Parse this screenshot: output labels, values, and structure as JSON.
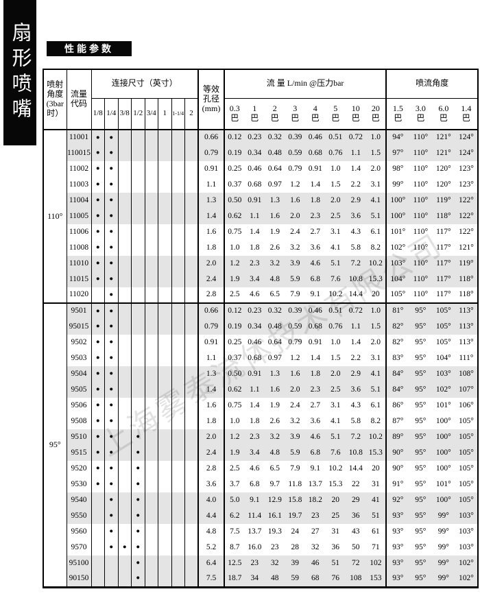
{
  "sidebar": {
    "title": "扇形喷嘴"
  },
  "section_label": "性能参数",
  "watermark": "上海雾泰流体技术有限公司",
  "colors": {
    "row_shade": "#e4e4e4",
    "banner_bg": "#070707",
    "banner_text": "#ffffff"
  },
  "table": {
    "header": {
      "spray_angle": "喷射\n角度\n(3bar\n时）",
      "flow_code": "流量\n代码",
      "connection": "连接尺寸（英寸）",
      "conn_sizes": [
        "1/8",
        "1/4",
        "3/8",
        "1/2",
        "3/4",
        "1",
        "1-1/4",
        "2"
      ],
      "aperture": "等效\n孔径\n(mm)",
      "flow_title": "流 量 L/min @压力bar",
      "flow_pressures": [
        "0.3",
        "1",
        "2",
        "3",
        "4",
        "5",
        "10",
        "20"
      ],
      "pressure_unit": "巴",
      "spray_title": "喷流角度",
      "spray_pressures": [
        "1.5",
        "3.0",
        "6.0",
        "1.4"
      ]
    },
    "sections": [
      {
        "angle": "110°",
        "rows": [
          {
            "code": "11001",
            "dots": [
              1,
              1,
              0,
              0,
              0,
              0,
              0,
              0
            ],
            "aperture": "0.66",
            "flows": [
              "0.12",
              "0.23",
              "0.32",
              "0.39",
              "0.46",
              "0.51",
              "0.72",
              "1.0"
            ],
            "angles": [
              "94°",
              "110°",
              "121°",
              "124°"
            ]
          },
          {
            "code": "110015",
            "dots": [
              1,
              1,
              0,
              0,
              0,
              0,
              0,
              0
            ],
            "aperture": "0.79",
            "flows": [
              "0.19",
              "0.34",
              "0.48",
              "0.59",
              "0.68",
              "0.76",
              "1.1",
              "1.5"
            ],
            "angles": [
              "97°",
              "110°",
              "121°",
              "124°"
            ]
          },
          {
            "code": "11002",
            "dots": [
              1,
              1,
              0,
              0,
              0,
              0,
              0,
              0
            ],
            "aperture": "0.91",
            "flows": [
              "0.25",
              "0.46",
              "0.64",
              "0.79",
              "0.91",
              "1.0",
              "1.4",
              "2.0"
            ],
            "angles": [
              "98°",
              "110°",
              "120°",
              "123°"
            ]
          },
          {
            "code": "11003",
            "dots": [
              1,
              1,
              0,
              0,
              0,
              0,
              0,
              0
            ],
            "aperture": "1.1",
            "flows": [
              "0.37",
              "0.68",
              "0.97",
              "1.2",
              "1.4",
              "1.5",
              "2.2",
              "3.1"
            ],
            "angles": [
              "99°",
              "110°",
              "120°",
              "123°"
            ]
          },
          {
            "code": "11004",
            "dots": [
              1,
              1,
              0,
              0,
              0,
              0,
              0,
              0
            ],
            "aperture": "1.3",
            "flows": [
              "0.50",
              "0.91",
              "1.3",
              "1.6",
              "1.8",
              "2.0",
              "2.9",
              "4.1"
            ],
            "angles": [
              "100°",
              "110°",
              "119°",
              "122°"
            ]
          },
          {
            "code": "11005",
            "dots": [
              1,
              1,
              0,
              0,
              0,
              0,
              0,
              0
            ],
            "aperture": "1.4",
            "flows": [
              "0.62",
              "1.1",
              "1.6",
              "2.0",
              "2.3",
              "2.5",
              "3.6",
              "5.1"
            ],
            "angles": [
              "100°",
              "110°",
              "118°",
              "122°"
            ]
          },
          {
            "code": "11006",
            "dots": [
              1,
              1,
              0,
              0,
              0,
              0,
              0,
              0
            ],
            "aperture": "1.6",
            "flows": [
              "0.75",
              "1.4",
              "1.9",
              "2.4",
              "2.7",
              "3.1",
              "4.3",
              "6.1"
            ],
            "angles": [
              "101°",
              "110°",
              "117°",
              "122°"
            ]
          },
          {
            "code": "11008",
            "dots": [
              1,
              1,
              0,
              0,
              0,
              0,
              0,
              0
            ],
            "aperture": "1.8",
            "flows": [
              "1.0",
              "1.8",
              "2.6",
              "3.2",
              "3.6",
              "4.1",
              "5.8",
              "8.2"
            ],
            "angles": [
              "102°",
              "110°",
              "117°",
              "121°"
            ]
          },
          {
            "code": "11010",
            "dots": [
              1,
              1,
              0,
              0,
              0,
              0,
              0,
              0
            ],
            "aperture": "2.0",
            "flows": [
              "1.2",
              "2.3",
              "3.2",
              "3.9",
              "4.6",
              "5.1",
              "7.2",
              "10.2"
            ],
            "angles": [
              "103°",
              "110°",
              "117°",
              "119°"
            ]
          },
          {
            "code": "11015",
            "dots": [
              1,
              1,
              0,
              0,
              0,
              0,
              0,
              0
            ],
            "aperture": "2.4",
            "flows": [
              "1.9",
              "3.4",
              "4.8",
              "5.9",
              "6.8",
              "7.6",
              "10.8",
              "15.3"
            ],
            "angles": [
              "104°",
              "110°",
              "117°",
              "118°"
            ]
          },
          {
            "code": "11020",
            "dots": [
              0,
              1,
              0,
              0,
              0,
              0,
              0,
              0
            ],
            "aperture": "2.8",
            "flows": [
              "2.5",
              "4.6",
              "6.5",
              "7.9",
              "9.1",
              "10.2",
              "14.4",
              "20"
            ],
            "angles": [
              "105°",
              "110°",
              "117°",
              "118°"
            ]
          }
        ]
      },
      {
        "angle": "95°",
        "rows": [
          {
            "code": "9501",
            "dots": [
              1,
              1,
              0,
              0,
              0,
              0,
              0,
              0
            ],
            "aperture": "0.66",
            "flows": [
              "0.12",
              "0.23",
              "0.32",
              "0.39",
              "0.46",
              "0.51",
              "0.72",
              "1.0"
            ],
            "angles": [
              "81°",
              "95°",
              "105°",
              "113°"
            ]
          },
          {
            "code": "95015",
            "dots": [
              1,
              1,
              0,
              0,
              0,
              0,
              0,
              0
            ],
            "aperture": "0.79",
            "flows": [
              "0.19",
              "0.34",
              "0.48",
              "0.59",
              "0.68",
              "0.76",
              "1.1",
              "1.5"
            ],
            "angles": [
              "82°",
              "95°",
              "105°",
              "113°"
            ]
          },
          {
            "code": "9502",
            "dots": [
              1,
              1,
              0,
              0,
              0,
              0,
              0,
              0
            ],
            "aperture": "0.91",
            "flows": [
              "0.25",
              "0.46",
              "0.64",
              "0.79",
              "0.91",
              "1.0",
              "1.4",
              "2.0"
            ],
            "angles": [
              "82°",
              "95°",
              "105°",
              "113°"
            ]
          },
          {
            "code": "9503",
            "dots": [
              1,
              1,
              0,
              0,
              0,
              0,
              0,
              0
            ],
            "aperture": "1.1",
            "flows": [
              "0.37",
              "0.68",
              "0.97",
              "1.2",
              "1.4",
              "1.5",
              "2.2",
              "3.1"
            ],
            "angles": [
              "83°",
              "95°",
              "104°",
              "111°"
            ]
          },
          {
            "code": "9504",
            "dots": [
              1,
              1,
              0,
              0,
              0,
              0,
              0,
              0
            ],
            "aperture": "1.3",
            "flows": [
              "0.50",
              "0.91",
              "1.3",
              "1.6",
              "1.8",
              "2.0",
              "2.9",
              "4.1"
            ],
            "angles": [
              "84°",
              "95°",
              "103°",
              "108°"
            ]
          },
          {
            "code": "9505",
            "dots": [
              1,
              1,
              0,
              0,
              0,
              0,
              0,
              0
            ],
            "aperture": "1.4",
            "flows": [
              "0.62",
              "1.1",
              "1.6",
              "2.0",
              "2.3",
              "2.5",
              "3.6",
              "5.1"
            ],
            "angles": [
              "84°",
              "95°",
              "102°",
              "107°"
            ]
          },
          {
            "code": "9506",
            "dots": [
              1,
              1,
              0,
              0,
              0,
              0,
              0,
              0
            ],
            "aperture": "1.6",
            "flows": [
              "0.75",
              "1.4",
              "1.9",
              "2.4",
              "2.7",
              "3.1",
              "4.3",
              "6.1"
            ],
            "angles": [
              "86°",
              "95°",
              "101°",
              "106°"
            ]
          },
          {
            "code": "9508",
            "dots": [
              1,
              1,
              0,
              0,
              0,
              0,
              0,
              0
            ],
            "aperture": "1.8",
            "flows": [
              "1.0",
              "1.8",
              "2.6",
              "3.2",
              "3.6",
              "4.1",
              "5.8",
              "8.2"
            ],
            "angles": [
              "87°",
              "95°",
              "100°",
              "105°"
            ]
          },
          {
            "code": "9510",
            "dots": [
              1,
              1,
              0,
              1,
              0,
              0,
              0,
              0
            ],
            "aperture": "2.0",
            "flows": [
              "1.2",
              "2.3",
              "3.2",
              "3.9",
              "4.6",
              "5.1",
              "7.2",
              "10.2"
            ],
            "angles": [
              "89°",
              "95°",
              "100°",
              "105°"
            ]
          },
          {
            "code": "9515",
            "dots": [
              1,
              1,
              0,
              1,
              0,
              0,
              0,
              0
            ],
            "aperture": "2.4",
            "flows": [
              "1.9",
              "3.4",
              "4.8",
              "5.9",
              "6.8",
              "7.6",
              "10.8",
              "15.3"
            ],
            "angles": [
              "90°",
              "95°",
              "100°",
              "105°"
            ]
          },
          {
            "code": "9520",
            "dots": [
              1,
              1,
              0,
              1,
              0,
              0,
              0,
              0
            ],
            "aperture": "2.8",
            "flows": [
              "2.5",
              "4.6",
              "6.5",
              "7.9",
              "9.1",
              "10.2",
              "14.4",
              "20"
            ],
            "angles": [
              "90°",
              "95°",
              "100°",
              "105°"
            ]
          },
          {
            "code": "9530",
            "dots": [
              1,
              1,
              0,
              1,
              0,
              0,
              0,
              0
            ],
            "aperture": "3.6",
            "flows": [
              "3.7",
              "6.8",
              "9.7",
              "11.8",
              "13.7",
              "15.3",
              "22",
              "31"
            ],
            "angles": [
              "91°",
              "95°",
              "101°",
              "105°"
            ]
          },
          {
            "code": "9540",
            "dots": [
              0,
              1,
              0,
              1,
              0,
              0,
              0,
              0
            ],
            "aperture": "4.0",
            "flows": [
              "5.0",
              "9.1",
              "12.9",
              "15.8",
              "18.2",
              "20",
              "29",
              "41"
            ],
            "angles": [
              "92°",
              "95°",
              "100°",
              "105°"
            ]
          },
          {
            "code": "9550",
            "dots": [
              0,
              1,
              0,
              1,
              0,
              0,
              0,
              0
            ],
            "aperture": "4.4",
            "flows": [
              "6.2",
              "11.4",
              "16.1",
              "19.7",
              "23",
              "25",
              "36",
              "51"
            ],
            "angles": [
              "93°",
              "95°",
              "99°",
              "103°"
            ]
          },
          {
            "code": "9560",
            "dots": [
              0,
              1,
              0,
              1,
              0,
              0,
              0,
              0
            ],
            "aperture": "4.8",
            "flows": [
              "7.5",
              "13.7",
              "19.3",
              "24",
              "27",
              "31",
              "43",
              "61"
            ],
            "angles": [
              "93°",
              "95°",
              "99°",
              "103°"
            ]
          },
          {
            "code": "9570",
            "dots": [
              0,
              1,
              1,
              1,
              0,
              0,
              0,
              0
            ],
            "aperture": "5.2",
            "flows": [
              "8.7",
              "16.0",
              "23",
              "28",
              "32",
              "36",
              "50",
              "71"
            ],
            "angles": [
              "93°",
              "95°",
              "99°",
              "103°"
            ]
          },
          {
            "code": "95100",
            "dots": [
              0,
              0,
              0,
              1,
              0,
              0,
              0,
              0
            ],
            "aperture": "6.4",
            "flows": [
              "12.5",
              "23",
              "32",
              "39",
              "46",
              "51",
              "72",
              "102"
            ],
            "angles": [
              "93°",
              "95°",
              "99°",
              "102°"
            ]
          },
          {
            "code": "90150",
            "dots": [
              0,
              0,
              0,
              1,
              0,
              0,
              0,
              0
            ],
            "aperture": "7.5",
            "flows": [
              "18.7",
              "34",
              "48",
              "59",
              "68",
              "76",
              "108",
              "153"
            ],
            "angles": [
              "93°",
              "95°",
              "99°",
              "102°"
            ]
          }
        ]
      }
    ]
  }
}
